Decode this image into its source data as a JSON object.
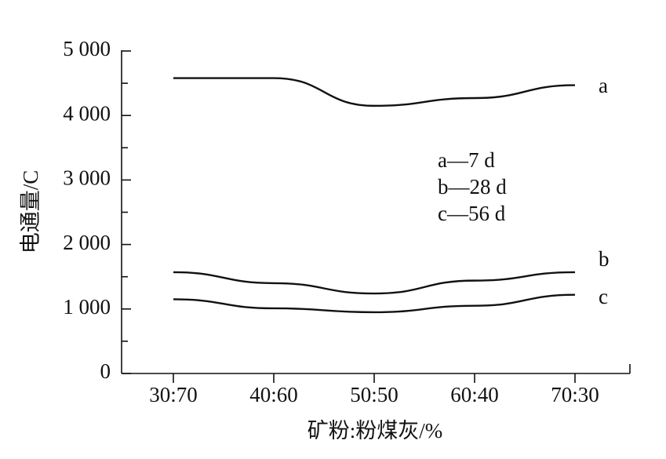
{
  "chart_data": {
    "type": "line",
    "x_label": "矿粉:粉煤灰/%",
    "y_label": "电通量/C",
    "categories": [
      "30:70",
      "40:60",
      "50:50",
      "60:40",
      "70:30"
    ],
    "ylim": [
      0,
      5000
    ],
    "yticks": [
      0,
      {
        "value": 1000,
        "label": "1 000"
      },
      {
        "value": 2000,
        "label": "2 000"
      },
      {
        "value": 3000,
        "label": "3 000"
      },
      {
        "value": 4000,
        "label": "4 000"
      },
      {
        "value": 5000,
        "label": "5 000"
      }
    ],
    "minor_yticks": [
      500,
      1500,
      2500,
      3500,
      4500
    ],
    "series": [
      {
        "name": "a",
        "label": "a—7 d",
        "color": "#111111",
        "values": [
          4580,
          4580,
          4150,
          4270,
          4470
        ]
      },
      {
        "name": "b",
        "label": "b—28 d",
        "color": "#111111",
        "values": [
          1570,
          1400,
          1240,
          1440,
          1570
        ]
      },
      {
        "name": "c",
        "label": "c—56 d",
        "color": "#111111",
        "values": [
          1150,
          1010,
          950,
          1050,
          1220
        ]
      }
    ]
  }
}
